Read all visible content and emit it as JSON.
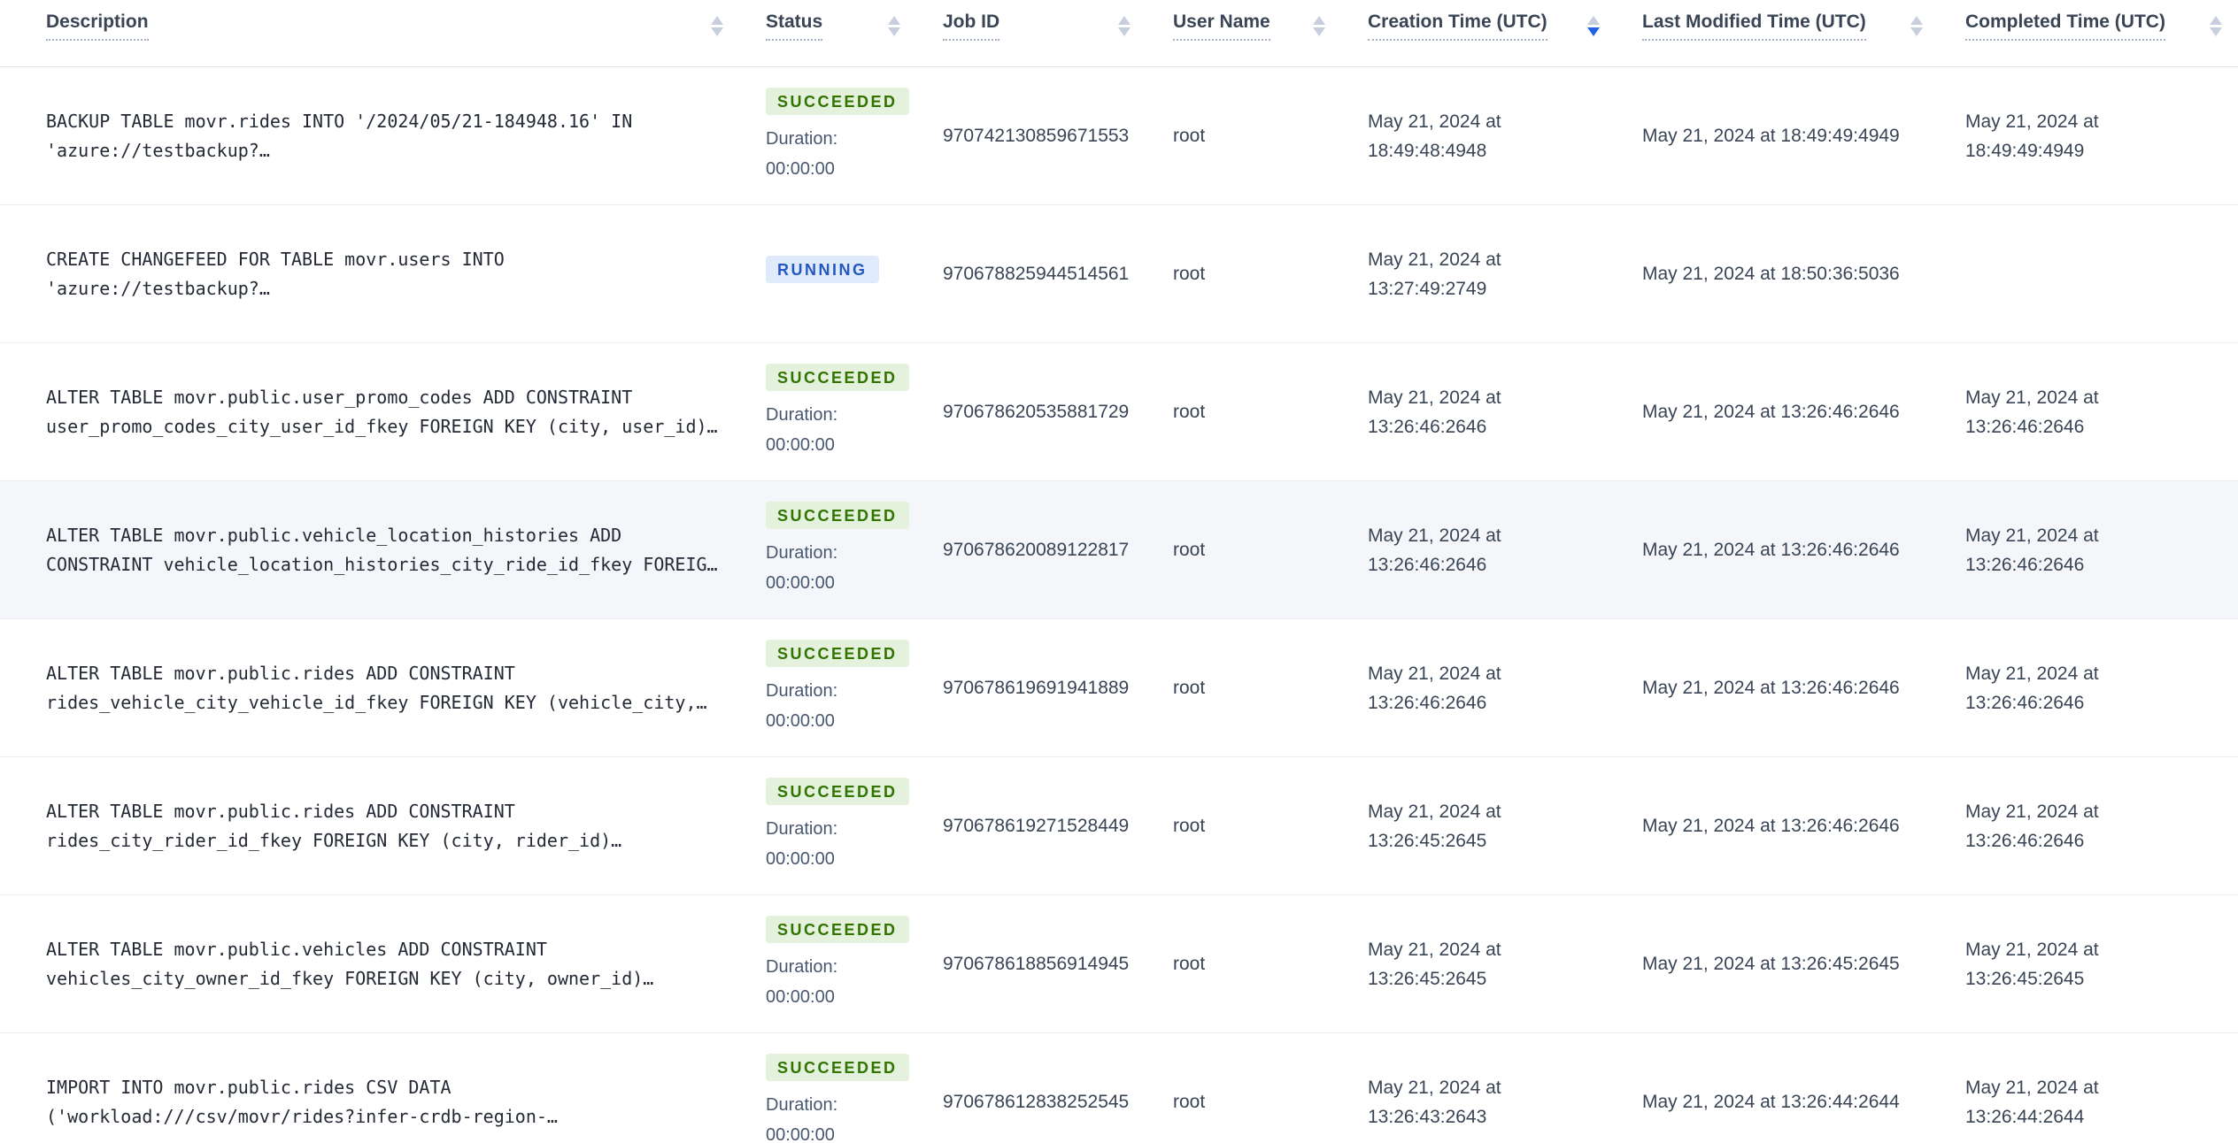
{
  "colors": {
    "header_text": "#394455",
    "sort_active": "#2264e8",
    "row_highlight": "#f4f6fa",
    "succeeded_bg": "#e4f2dd",
    "succeeded_text": "#317400",
    "running_bg": "#dfeafb",
    "running_text": "#2458c5"
  },
  "table": {
    "columns": [
      {
        "label": "Description",
        "sort": "none"
      },
      {
        "label": "Status",
        "sort": "none"
      },
      {
        "label": "Job ID",
        "sort": "none"
      },
      {
        "label": "User Name",
        "sort": "none"
      },
      {
        "label": "Creation Time (UTC)",
        "sort": "desc"
      },
      {
        "label": "Last Modified Time (UTC)",
        "sort": "none"
      },
      {
        "label": "Completed Time (UTC)",
        "sort": "none"
      }
    ],
    "rows": [
      {
        "description": "BACKUP TABLE movr.rides INTO '/2024/05/21-184948.16' IN\n'azure://testbackup?…",
        "status": "SUCCEEDED",
        "duration_label": "Duration:",
        "duration": "00:00:00",
        "job_id": "970742130859671553",
        "user_name": "root",
        "creation_time": "May 21, 2024 at\n18:49:48:4948",
        "last_modified_time": "May 21, 2024 at 18:49:49:4949",
        "completed_time": "May 21, 2024 at\n18:49:49:4949",
        "highlighted": false
      },
      {
        "description": "CREATE CHANGEFEED FOR TABLE movr.users INTO\n'azure://testbackup?…",
        "status": "RUNNING",
        "duration_label": "",
        "duration": "",
        "job_id": "970678825944514561",
        "user_name": "root",
        "creation_time": "May 21, 2024 at\n13:27:49:2749",
        "last_modified_time": "May 21, 2024 at 18:50:36:5036",
        "completed_time": "",
        "highlighted": false
      },
      {
        "description": "ALTER TABLE movr.public.user_promo_codes ADD CONSTRAINT\nuser_promo_codes_city_user_id_fkey FOREIGN KEY (city, user_id)…",
        "status": "SUCCEEDED",
        "duration_label": "Duration:",
        "duration": "00:00:00",
        "job_id": "970678620535881729",
        "user_name": "root",
        "creation_time": "May 21, 2024 at\n13:26:46:2646",
        "last_modified_time": "May 21, 2024 at 13:26:46:2646",
        "completed_time": "May 21, 2024 at\n13:26:46:2646",
        "highlighted": false
      },
      {
        "description": "ALTER TABLE movr.public.vehicle_location_histories ADD\nCONSTRAINT vehicle_location_histories_city_ride_id_fkey FOREIG…",
        "status": "SUCCEEDED",
        "duration_label": "Duration:",
        "duration": "00:00:00",
        "job_id": "970678620089122817",
        "user_name": "root",
        "creation_time": "May 21, 2024 at\n13:26:46:2646",
        "last_modified_time": "May 21, 2024 at 13:26:46:2646",
        "completed_time": "May 21, 2024 at\n13:26:46:2646",
        "highlighted": true
      },
      {
        "description": "ALTER TABLE movr.public.rides ADD CONSTRAINT\nrides_vehicle_city_vehicle_id_fkey FOREIGN KEY (vehicle_city,…",
        "status": "SUCCEEDED",
        "duration_label": "Duration:",
        "duration": "00:00:00",
        "job_id": "970678619691941889",
        "user_name": "root",
        "creation_time": "May 21, 2024 at\n13:26:46:2646",
        "last_modified_time": "May 21, 2024 at 13:26:46:2646",
        "completed_time": "May 21, 2024 at\n13:26:46:2646",
        "highlighted": false
      },
      {
        "description": "ALTER TABLE movr.public.rides ADD CONSTRAINT\nrides_city_rider_id_fkey FOREIGN KEY (city, rider_id)…",
        "status": "SUCCEEDED",
        "duration_label": "Duration:",
        "duration": "00:00:00",
        "job_id": "970678619271528449",
        "user_name": "root",
        "creation_time": "May 21, 2024 at\n13:26:45:2645",
        "last_modified_time": "May 21, 2024 at 13:26:46:2646",
        "completed_time": "May 21, 2024 at\n13:26:46:2646",
        "highlighted": false
      },
      {
        "description": "ALTER TABLE movr.public.vehicles ADD CONSTRAINT\nvehicles_city_owner_id_fkey FOREIGN KEY (city, owner_id)…",
        "status": "SUCCEEDED",
        "duration_label": "Duration:",
        "duration": "00:00:00",
        "job_id": "970678618856914945",
        "user_name": "root",
        "creation_time": "May 21, 2024 at\n13:26:45:2645",
        "last_modified_time": "May 21, 2024 at 13:26:45:2645",
        "completed_time": "May 21, 2024 at\n13:26:45:2645",
        "highlighted": false
      },
      {
        "description": "IMPORT INTO movr.public.rides CSV DATA\n('workload:///csv/movr/rides?infer-crdb-region-…",
        "status": "SUCCEEDED",
        "duration_label": "Duration:",
        "duration": "00:00:00",
        "job_id": "970678612838252545",
        "user_name": "root",
        "creation_time": "May 21, 2024 at\n13:26:43:2643",
        "last_modified_time": "May 21, 2024 at 13:26:44:2644",
        "completed_time": "May 21, 2024 at\n13:26:44:2644",
        "highlighted": false
      }
    ]
  }
}
